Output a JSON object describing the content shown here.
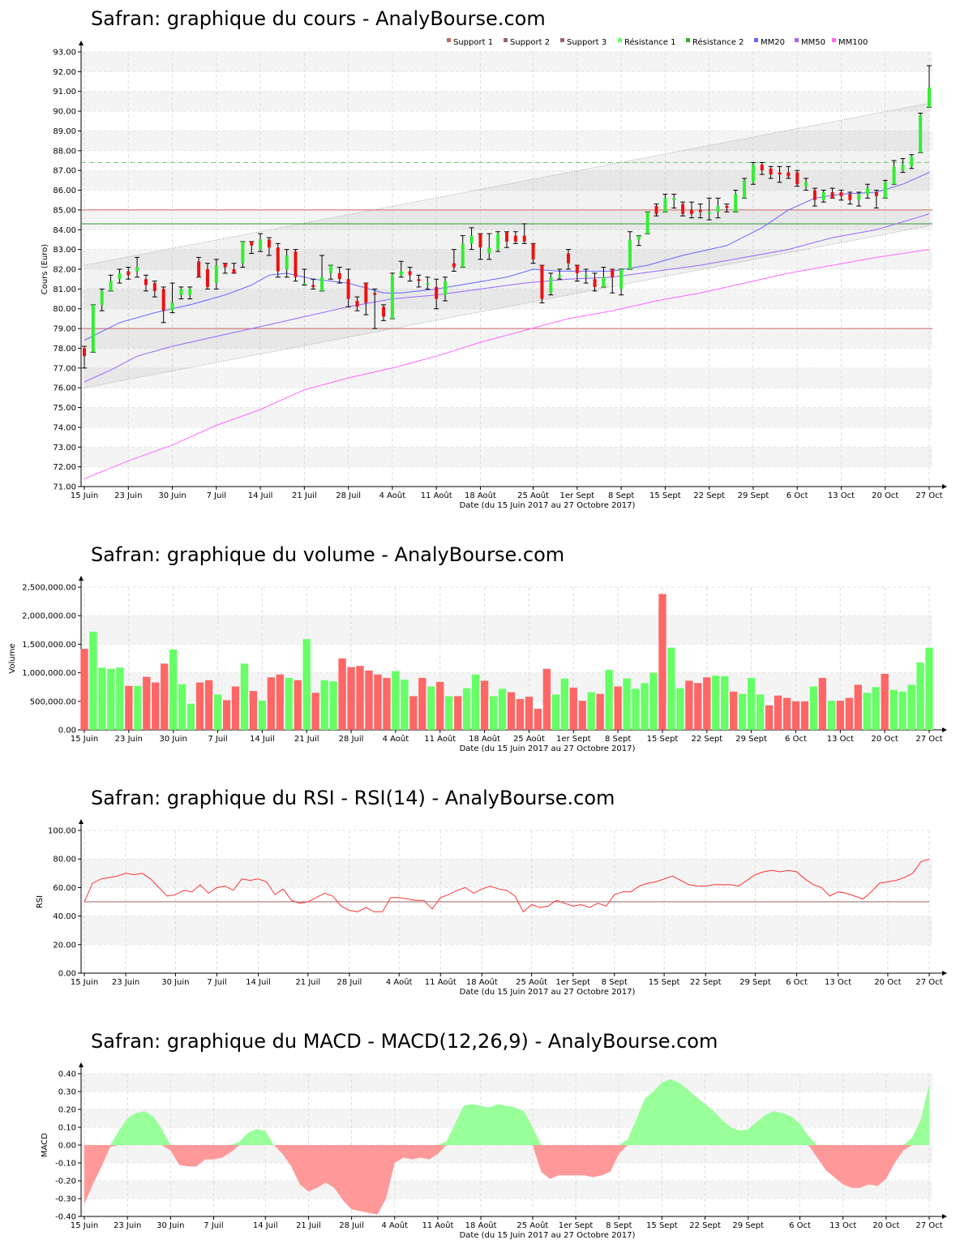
{
  "x_labels": [
    "15 Juin",
    "23 Juin",
    "30 Juin",
    "7 Juil",
    "14 Juil",
    "21 Juil",
    "28 Juil",
    "4 Août",
    "11 Août",
    "18 Août",
    "25 Août",
    "1er Sept",
    "8 Sept",
    "15 Sept",
    "22 Sept",
    "29 Sept",
    "6 Oct",
    "13 Oct",
    "20 Oct",
    "27 Oct"
  ],
  "x_axis_title": "Date (du 15 Juin 2017 au 27 Octobre 2017)",
  "colors": {
    "up": "#66ff66",
    "down": "#ff6666",
    "support": "#cc6666",
    "resistance1": "#66cc66",
    "resistance2": "#339933",
    "mm20": "#6666ff",
    "mm50": "#9966ff",
    "mm100": "#ff66ff",
    "rsi": "#ff3333",
    "macd_pos": "#99ff99",
    "macd_neg": "#ff9999"
  },
  "chart_data": [
    {
      "type": "candlestick",
      "title": "Safran: graphique du cours - AnalyBourse.com",
      "ylabel": "Cours (Euro)",
      "xlabel": "Date (du 15 Juin 2017 au 27 Octobre 2017)",
      "ylim": [
        71,
        93
      ],
      "yticks": [
        "71.00",
        "72.00",
        "73.00",
        "74.00",
        "75.00",
        "76.00",
        "77.00",
        "78.00",
        "79.00",
        "80.00",
        "81.00",
        "82.00",
        "83.00",
        "84.00",
        "85.00",
        "86.00",
        "87.00",
        "88.00",
        "89.00",
        "90.00",
        "91.00",
        "92.00",
        "93.00"
      ],
      "legend": [
        "Support 1",
        "Support 2",
        "Support 3",
        "Résistance 1",
        "Résistance 2",
        "MM20",
        "MM50",
        "MM100"
      ],
      "legend_position": "top-right",
      "support": 79.0,
      "resistance1": 87.4,
      "resistance2": 84.3,
      "level_85": 85.0,
      "candles": [
        [
          78.0,
          77.6,
          77.0,
          78.1
        ],
        [
          77.8,
          80.2,
          77.8,
          80.2
        ],
        [
          80.2,
          80.9,
          79.9,
          81.0
        ],
        [
          80.9,
          81.4,
          80.9,
          81.7
        ],
        [
          81.5,
          81.8,
          81.3,
          82.0
        ],
        [
          81.9,
          81.7,
          81.5,
          82.1
        ],
        [
          81.9,
          82.1,
          81.6,
          82.6
        ],
        [
          81.5,
          81.2,
          80.9,
          81.7
        ],
        [
          81.3,
          80.9,
          80.6,
          81.4
        ],
        [
          81.0,
          79.9,
          79.3,
          81.1
        ],
        [
          79.9,
          80.3,
          79.8,
          81.3
        ],
        [
          80.7,
          81.0,
          80.5,
          81.1
        ],
        [
          80.7,
          81.0,
          80.5,
          81.1
        ],
        [
          82.4,
          81.6,
          81.6,
          82.6
        ],
        [
          82.0,
          81.1,
          81.0,
          82.3
        ],
        [
          81.3,
          82.2,
          81.0,
          82.5
        ],
        [
          82.3,
          82.1,
          81.8,
          82.3
        ],
        [
          82.0,
          81.8,
          81.8,
          82.3
        ],
        [
          82.3,
          83.4,
          82.1,
          83.4
        ],
        [
          83.4,
          83.2,
          82.8,
          83.4
        ],
        [
          83.0,
          83.5,
          82.9,
          83.8
        ],
        [
          83.5,
          83.1,
          82.7,
          83.6
        ],
        [
          83.1,
          81.9,
          81.6,
          83.3
        ],
        [
          82.0,
          82.7,
          81.6,
          83.0
        ],
        [
          82.9,
          81.6,
          81.4,
          83.0
        ],
        [
          81.3,
          81.3,
          81.2,
          82.0
        ],
        [
          81.2,
          81.1,
          81.0,
          81.5
        ],
        [
          80.9,
          81.6,
          80.9,
          82.7
        ],
        [
          81.8,
          82.2,
          81.5,
          82.2
        ],
        [
          81.8,
          81.5,
          81.3,
          82.1
        ],
        [
          81.5,
          80.5,
          80.1,
          82.0
        ],
        [
          80.4,
          80.1,
          79.9,
          80.6
        ],
        [
          81.3,
          80.3,
          79.7,
          81.3
        ],
        [
          80.8,
          80.7,
          79.0,
          81.0
        ],
        [
          80.1,
          79.6,
          79.4,
          80.2
        ],
        [
          79.5,
          81.7,
          79.5,
          81.8
        ],
        [
          81.7,
          81.9,
          81.6,
          82.4
        ],
        [
          81.9,
          81.7,
          81.4,
          82.1
        ],
        [
          81.5,
          81.4,
          81.1,
          81.7
        ],
        [
          81.3,
          81.3,
          81.0,
          81.6
        ],
        [
          81.1,
          80.5,
          80.0,
          81.5
        ],
        [
          80.7,
          81.4,
          80.4,
          81.6
        ],
        [
          82.3,
          82.1,
          81.9,
          83.0
        ],
        [
          82.1,
          83.3,
          82.1,
          83.7
        ],
        [
          83.3,
          83.7,
          83.0,
          84.1
        ],
        [
          83.8,
          83.1,
          82.5,
          83.8
        ],
        [
          82.8,
          83.1,
          82.5,
          83.8
        ],
        [
          83.0,
          83.8,
          82.9,
          83.9
        ],
        [
          83.9,
          83.4,
          83.1,
          83.9
        ],
        [
          83.7,
          83.4,
          83.3,
          83.9
        ],
        [
          83.7,
          83.4,
          83.3,
          84.3
        ],
        [
          83.3,
          82.5,
          82.3,
          83.3
        ],
        [
          82.2,
          80.5,
          80.3,
          82.2
        ],
        [
          80.8,
          81.6,
          80.7,
          81.8
        ],
        [
          81.6,
          81.7,
          81.5,
          82.0
        ],
        [
          82.8,
          82.3,
          82.0,
          83.0
        ],
        [
          82.2,
          81.8,
          81.4,
          82.2
        ],
        [
          81.7,
          81.7,
          81.3,
          82.0
        ],
        [
          81.5,
          81.1,
          80.9,
          81.8
        ],
        [
          81.1,
          81.6,
          81.1,
          82.1
        ],
        [
          82.0,
          81.6,
          80.8,
          82.0
        ],
        [
          81.0,
          82.0,
          80.7,
          82.0
        ],
        [
          82.0,
          83.5,
          82.0,
          83.9
        ],
        [
          83.5,
          83.7,
          83.2,
          83.7
        ],
        [
          83.8,
          84.9,
          83.8,
          84.9
        ],
        [
          85.2,
          84.8,
          84.7,
          85.3
        ],
        [
          84.9,
          85.6,
          84.9,
          85.8
        ],
        [
          85.5,
          85.6,
          85.1,
          85.8
        ],
        [
          85.3,
          84.8,
          84.7,
          85.4
        ],
        [
          85.0,
          84.8,
          84.6,
          85.4
        ],
        [
          85.0,
          84.9,
          84.6,
          85.3
        ],
        [
          84.8,
          84.9,
          84.5,
          85.6
        ],
        [
          84.9,
          85.2,
          84.6,
          85.6
        ],
        [
          85.2,
          85.1,
          84.9,
          85.3
        ],
        [
          84.9,
          85.8,
          84.9,
          86.0
        ],
        [
          85.6,
          86.5,
          85.6,
          86.6
        ],
        [
          86.4,
          87.3,
          86.3,
          87.4
        ],
        [
          87.3,
          87.0,
          86.8,
          87.4
        ],
        [
          87.1,
          86.8,
          86.6,
          87.2
        ],
        [
          86.9,
          86.8,
          86.4,
          87.2
        ],
        [
          86.9,
          86.7,
          86.6,
          87.2
        ],
        [
          86.9,
          86.3,
          86.2,
          87.0
        ],
        [
          86.2,
          86.4,
          86.0,
          86.6
        ],
        [
          86.0,
          85.5,
          85.2,
          86.1
        ],
        [
          85.5,
          85.9,
          85.4,
          86.0
        ],
        [
          85.9,
          85.6,
          85.6,
          86.1
        ],
        [
          85.9,
          85.7,
          85.5,
          86.0
        ],
        [
          85.8,
          85.5,
          85.3,
          85.9
        ],
        [
          85.5,
          85.8,
          85.2,
          85.9
        ],
        [
          85.8,
          86.1,
          85.6,
          86.3
        ],
        [
          85.9,
          85.7,
          85.1,
          86.0
        ],
        [
          85.6,
          86.4,
          85.6,
          86.5
        ],
        [
          86.3,
          87.2,
          86.3,
          87.5
        ],
        [
          87.0,
          87.3,
          86.9,
          87.6
        ],
        [
          87.2,
          87.7,
          87.1,
          87.8
        ],
        [
          87.9,
          89.8,
          87.9,
          89.9
        ],
        [
          90.2,
          91.2,
          90.2,
          92.3
        ]
      ],
      "mm20_points": [
        [
          0,
          78.4
        ],
        [
          4,
          79.3
        ],
        [
          8,
          79.8
        ],
        [
          12,
          80.2
        ],
        [
          16,
          80.7
        ],
        [
          19,
          81.2
        ],
        [
          21,
          81.7
        ],
        [
          23,
          81.8
        ],
        [
          26,
          81.5
        ],
        [
          30,
          81.3
        ],
        [
          34,
          80.8
        ],
        [
          36,
          80.8
        ],
        [
          40,
          81.0
        ],
        [
          44,
          81.3
        ],
        [
          48,
          81.6
        ],
        [
          51,
          82.0
        ],
        [
          54,
          81.9
        ],
        [
          60,
          81.9
        ],
        [
          64,
          82.2
        ],
        [
          68,
          82.7
        ],
        [
          73,
          83.2
        ],
        [
          77,
          84.1
        ],
        [
          80,
          85.0
        ],
        [
          83,
          85.6
        ],
        [
          86,
          85.8
        ],
        [
          90,
          85.9
        ],
        [
          93,
          86.3
        ],
        [
          96,
          86.9
        ]
      ],
      "mm50_points": [
        [
          0,
          76.3
        ],
        [
          3,
          76.9
        ],
        [
          6,
          77.6
        ],
        [
          10,
          78.1
        ],
        [
          14,
          78.5
        ],
        [
          20,
          79.1
        ],
        [
          25,
          79.6
        ],
        [
          30,
          80.1
        ],
        [
          35,
          80.5
        ],
        [
          40,
          80.7
        ],
        [
          45,
          81.0
        ],
        [
          50,
          81.3
        ],
        [
          55,
          81.5
        ],
        [
          60,
          81.6
        ],
        [
          65,
          81.9
        ],
        [
          70,
          82.2
        ],
        [
          75,
          82.6
        ],
        [
          80,
          83.0
        ],
        [
          85,
          83.6
        ],
        [
          90,
          84.0
        ],
        [
          96,
          84.8
        ]
      ],
      "mm100_points": [
        [
          0,
          71.4
        ],
        [
          5,
          72.3
        ],
        [
          10,
          73.1
        ],
        [
          15,
          74.1
        ],
        [
          20,
          74.9
        ],
        [
          25,
          75.9
        ],
        [
          30,
          76.5
        ],
        [
          35,
          77.0
        ],
        [
          40,
          77.6
        ],
        [
          45,
          78.3
        ],
        [
          50,
          78.9
        ],
        [
          55,
          79.5
        ],
        [
          60,
          79.9
        ],
        [
          65,
          80.4
        ],
        [
          70,
          80.8
        ],
        [
          75,
          81.3
        ],
        [
          80,
          81.8
        ],
        [
          85,
          82.2
        ],
        [
          90,
          82.6
        ],
        [
          96,
          83.0
        ]
      ],
      "channel_upper": [
        [
          0,
          82.2
        ],
        [
          96,
          90.4
        ]
      ],
      "channel_lower": [
        [
          0,
          76.0
        ],
        [
          96,
          84.2
        ]
      ]
    },
    {
      "type": "bar",
      "title": "Safran: graphique du volume - AnalyBourse.com",
      "ylabel": "Volume",
      "xlabel": "Date (du 15 Juin 2017 au 27 Octobre 2017)",
      "ylim": [
        0,
        2500000
      ],
      "yticks": [
        "0.00",
        "500,000.00",
        "1,000,000.00",
        "1,500,000.00",
        "2,000,000.00",
        "2,500,000.00"
      ],
      "values": [
        1420000,
        1720000,
        1090000,
        1070000,
        1090000,
        770000,
        770000,
        930000,
        830000,
        1160000,
        1410000,
        800000,
        460000,
        830000,
        870000,
        620000,
        520000,
        760000,
        1160000,
        680000,
        510000,
        920000,
        970000,
        910000,
        870000,
        1590000,
        650000,
        870000,
        850000,
        1250000,
        1100000,
        1120000,
        1040000,
        970000,
        910000,
        1030000,
        880000,
        590000,
        910000,
        760000,
        840000,
        590000,
        590000,
        730000,
        970000,
        860000,
        590000,
        720000,
        660000,
        540000,
        580000,
        370000,
        1070000,
        620000,
        900000,
        740000,
        510000,
        660000,
        630000,
        1050000,
        760000,
        900000,
        720000,
        820000,
        1000000,
        2380000,
        1440000,
        730000,
        860000,
        820000,
        920000,
        950000,
        940000,
        670000,
        630000,
        910000,
        620000,
        430000,
        600000,
        560000,
        500000,
        500000,
        760000,
        910000,
        510000,
        510000,
        560000,
        790000,
        650000,
        750000,
        980000,
        700000,
        670000,
        790000,
        1180000,
        1440000
      ]
    },
    {
      "type": "line",
      "title": "Safran: graphique du RSI - RSI(14) - AnalyBourse.com",
      "ylabel": "RSI",
      "xlabel": "Date (du 15 Juin 2017 au 27 Octobre 2017)",
      "ylim": [
        0,
        100
      ],
      "yticks": [
        "0.00",
        "20.00",
        "40.00",
        "60.00",
        "80.00",
        "100.00"
      ],
      "reference": 50,
      "values": [
        50,
        63,
        66,
        67,
        68,
        70,
        69,
        70,
        66,
        60,
        54,
        55,
        58,
        57,
        62,
        56,
        60,
        61,
        58,
        66,
        65,
        66,
        64,
        55,
        59,
        51,
        49,
        50,
        53,
        56,
        54,
        47,
        44,
        43,
        46,
        43,
        43,
        53,
        53,
        52,
        51,
        51,
        45,
        53,
        55,
        58,
        60,
        56,
        59,
        61,
        59,
        58,
        54,
        43,
        48,
        46,
        47,
        51,
        49,
        47,
        48,
        46,
        49,
        47,
        55,
        57,
        57,
        61,
        63,
        64,
        66,
        68,
        65,
        62,
        61,
        61,
        62,
        62,
        62,
        61,
        65,
        69,
        71,
        72,
        71,
        72,
        71,
        66,
        62,
        60,
        54,
        57,
        56,
        54,
        52,
        57,
        63,
        64,
        65,
        67,
        70,
        78,
        80
      ]
    },
    {
      "type": "area",
      "title": "Safran: graphique du MACD - MACD(12,26,9) - AnalyBourse.com",
      "ylabel": "MACD",
      "xlabel": "Date (du 15 Juin 2017 au 27 Octobre 2017)",
      "ylim": [
        -0.4,
        0.4
      ],
      "yticks": [
        "-0.40",
        "-0.30",
        "-0.20",
        "-0.10",
        "0.00",
        "0.10",
        "0.20",
        "0.30",
        "0.40"
      ],
      "values": [
        -0.33,
        -0.22,
        -0.12,
        -0.01,
        0.08,
        0.15,
        0.18,
        0.19,
        0.16,
        0.09,
        -0.03,
        -0.11,
        -0.12,
        -0.12,
        -0.08,
        -0.08,
        -0.07,
        -0.04,
        0.02,
        0.07,
        0.09,
        0.08,
        0.0,
        -0.05,
        -0.12,
        -0.22,
        -0.26,
        -0.24,
        -0.21,
        -0.24,
        -0.31,
        -0.36,
        -0.37,
        -0.38,
        -0.39,
        -0.3,
        -0.1,
        -0.07,
        -0.08,
        -0.07,
        -0.08,
        -0.05,
        0.02,
        0.12,
        0.22,
        0.23,
        0.22,
        0.21,
        0.23,
        0.22,
        0.21,
        0.19,
        0.1,
        -0.15,
        -0.19,
        -0.17,
        -0.17,
        -0.17,
        -0.17,
        -0.18,
        -0.17,
        -0.15,
        -0.05,
        0.03,
        0.14,
        0.26,
        0.3,
        0.35,
        0.37,
        0.35,
        0.31,
        0.27,
        0.23,
        0.19,
        0.14,
        0.1,
        0.08,
        0.09,
        0.13,
        0.17,
        0.19,
        0.18,
        0.16,
        0.12,
        0.05,
        -0.07,
        -0.14,
        -0.18,
        -0.22,
        -0.24,
        -0.24,
        -0.22,
        -0.23,
        -0.19,
        -0.1,
        -0.03,
        0.04,
        0.14,
        0.34
      ]
    }
  ]
}
